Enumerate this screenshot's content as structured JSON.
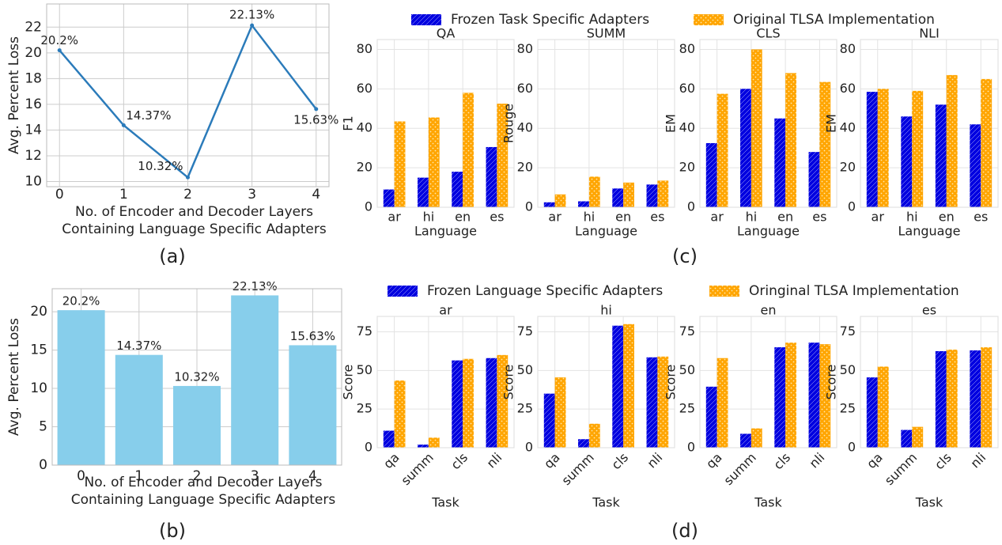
{
  "chart_data": [
    {
      "type": "line",
      "caption": "(a)",
      "xlabel": [
        "No. of Encoder and Decoder Layers",
        "Containing Language Specific Adapters"
      ],
      "ylabel": "Avg. Percent Loss",
      "x": [
        0,
        1,
        2,
        3,
        4
      ],
      "values": [
        20.2,
        14.37,
        10.32,
        22.13,
        15.63
      ],
      "value_labels": [
        "20.2%",
        "14.37%",
        "10.32%",
        "22.13%",
        "15.63%"
      ],
      "color": "#2b7bba",
      "xlim": [
        -0.2,
        4.2
      ],
      "xticks": [
        0,
        1,
        2,
        3,
        4
      ],
      "ylim": [
        9.6,
        23.8
      ],
      "yticks": [
        10,
        12,
        14,
        16,
        18,
        20,
        22
      ],
      "grid": true
    },
    {
      "type": "bar",
      "caption": "(b)",
      "xlabel": [
        "No. of Encoder and Decoder Layers",
        "Containing Language Specific Adapters"
      ],
      "ylabel": "Avg. Percent Loss",
      "categories": [
        "0",
        "1",
        "2",
        "3",
        "4"
      ],
      "values": [
        20.2,
        14.37,
        10.32,
        22.13,
        15.63
      ],
      "value_labels": [
        "20.2%",
        "14.37%",
        "10.32%",
        "22.13%",
        "15.63%"
      ],
      "color": "#87ceeb",
      "ylim": [
        0,
        23
      ],
      "yticks": [
        0,
        5,
        10,
        15,
        20
      ],
      "grid": true
    },
    {
      "type": "grouped_bar_panels",
      "caption": "(c)",
      "xlabel": "Language",
      "ylim": [
        0,
        85
      ],
      "yticks": [
        0,
        20,
        40,
        60,
        80
      ],
      "grid": true,
      "series": [
        {
          "name": "Frozen Task Specific Adapters",
          "color": "#0000e0",
          "hatch": "diagonal"
        },
        {
          "name": "Original TLSA Implementation",
          "color": "#ffa500",
          "hatch": "dots"
        }
      ],
      "panels": [
        {
          "title": "QA",
          "ylabel": "F1",
          "categories": [
            "ar",
            "hi",
            "en",
            "es"
          ],
          "values": [
            [
              9,
              15,
              18,
              30.5
            ],
            [
              43.5,
              45.5,
              58,
              52.5
            ]
          ]
        },
        {
          "title": "SUMM",
          "ylabel": "Rouge",
          "categories": [
            "ar",
            "hi",
            "en",
            "es"
          ],
          "values": [
            [
              2.5,
              3,
              9.5,
              11.5
            ],
            [
              6.5,
              15.5,
              12.5,
              13.5
            ]
          ]
        },
        {
          "title": "CLS",
          "ylabel": "EM",
          "categories": [
            "ar",
            "hi",
            "en",
            "es"
          ],
          "values": [
            [
              32.5,
              60,
              45,
              28
            ],
            [
              57.5,
              80,
              68,
              63.5
            ]
          ]
        },
        {
          "title": "NLI",
          "ylabel": "EM",
          "categories": [
            "ar",
            "hi",
            "en",
            "es"
          ],
          "values": [
            [
              58.5,
              46,
              52,
              42
            ],
            [
              60,
              59,
              67,
              65
            ]
          ]
        }
      ]
    },
    {
      "type": "grouped_bar_panels",
      "caption": "(d)",
      "xlabel": "Task",
      "ylim": [
        0,
        85
      ],
      "yticks": [
        0,
        25,
        50,
        75
      ],
      "grid": true,
      "xtick_rotation": 45,
      "series": [
        {
          "name": "Frozen Language Specific Adapters",
          "color": "#0000e0",
          "hatch": "diagonal"
        },
        {
          "name": "Oringinal TLSA Implementation",
          "color": "#ffa500",
          "hatch": "dots"
        }
      ],
      "panels": [
        {
          "title": "ar",
          "ylabel": "Score",
          "categories": [
            "qa",
            "summ",
            "cls",
            "nli"
          ],
          "values": [
            [
              11,
              2,
              56.5,
              58
            ],
            [
              43.5,
              6.5,
              57.5,
              60
            ]
          ]
        },
        {
          "title": "hi",
          "ylabel": "Score",
          "categories": [
            "qa",
            "summ",
            "cls",
            "nli"
          ],
          "values": [
            [
              35,
              5.5,
              79,
              58.5
            ],
            [
              45.5,
              15.5,
              80,
              59
            ]
          ]
        },
        {
          "title": "en",
          "ylabel": "Score",
          "categories": [
            "qa",
            "summ",
            "cls",
            "nli"
          ],
          "values": [
            [
              39.5,
              9,
              65,
              68
            ],
            [
              58,
              12.5,
              68,
              67
            ]
          ]
        },
        {
          "title": "es",
          "ylabel": "Score",
          "categories": [
            "qa",
            "summ",
            "cls",
            "nli"
          ],
          "values": [
            [
              45.5,
              11.5,
              62.5,
              63
            ],
            [
              52.5,
              13.5,
              63.5,
              65
            ]
          ]
        }
      ]
    }
  ]
}
